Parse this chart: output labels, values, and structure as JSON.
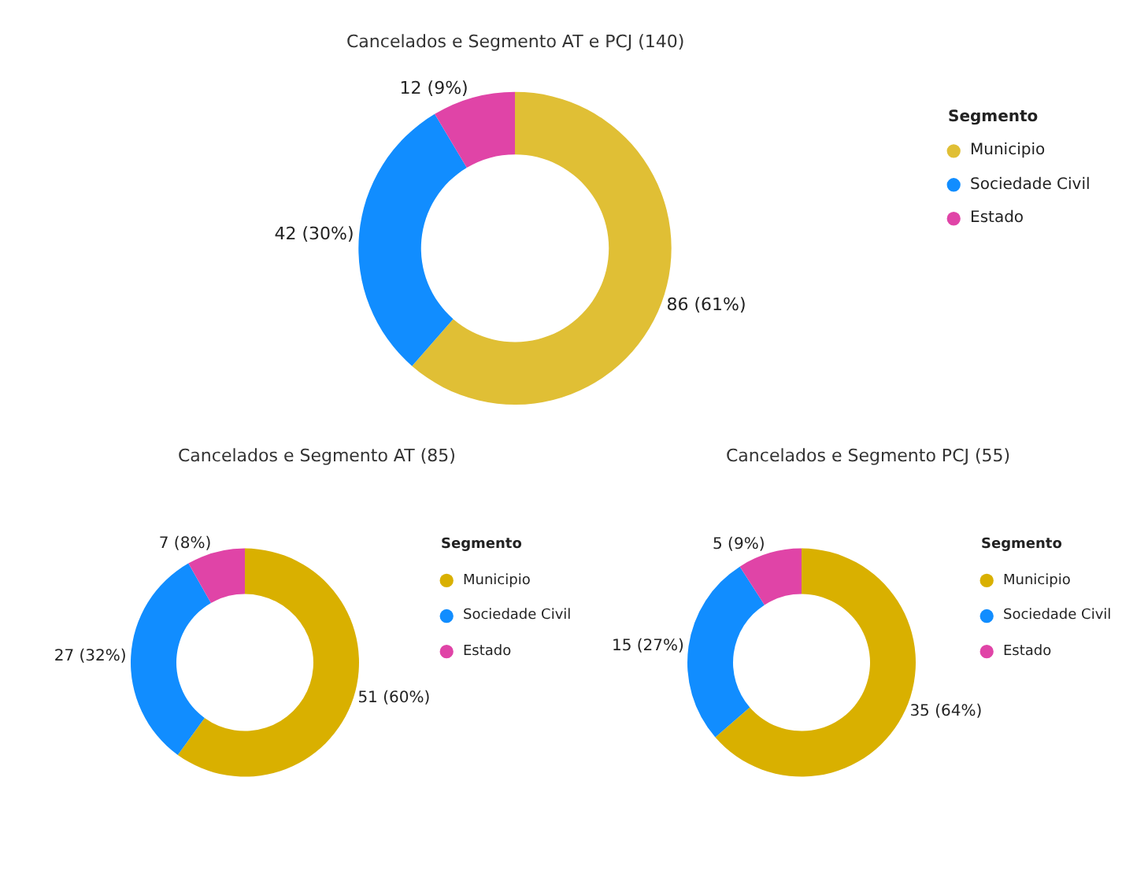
{
  "chart_data": [
    {
      "type": "donut",
      "title": "Cancelados e Segmento AT e PCJ (140)",
      "legend_title": "Segmento",
      "legend": "right",
      "categories": [
        "Municipio",
        "Sociedade Civil",
        "Estado"
      ],
      "values": [
        86,
        42,
        12
      ],
      "colors": [
        "#e0bf35",
        "#118dff",
        "#e044a7"
      ],
      "value_labels": [
        "86 (61%)",
        "42 (30%)",
        "12 (9%)"
      ]
    },
    {
      "type": "donut",
      "title": "Cancelados e Segmento AT (85)",
      "legend_title": "Segmento",
      "legend": "right",
      "categories": [
        "Municipio",
        "Sociedade Civil",
        "Estado"
      ],
      "values": [
        51,
        27,
        7
      ],
      "colors": [
        "#d9b000",
        "#118dff",
        "#e044a7"
      ],
      "value_labels": [
        "51 (60%)",
        "27 (32%)",
        "7 (8%)"
      ]
    },
    {
      "type": "donut",
      "title": "Cancelados e Segmento PCJ (55)",
      "legend_title": "Segmento",
      "legend": "right",
      "categories": [
        "Municipio",
        "Sociedade Civil",
        "Estado"
      ],
      "values": [
        35,
        15,
        5
      ],
      "colors": [
        "#d9b000",
        "#118dff",
        "#e044a7"
      ],
      "value_labels": [
        "35 (64%)",
        "15 (27%)",
        "5 (9%)"
      ]
    }
  ]
}
